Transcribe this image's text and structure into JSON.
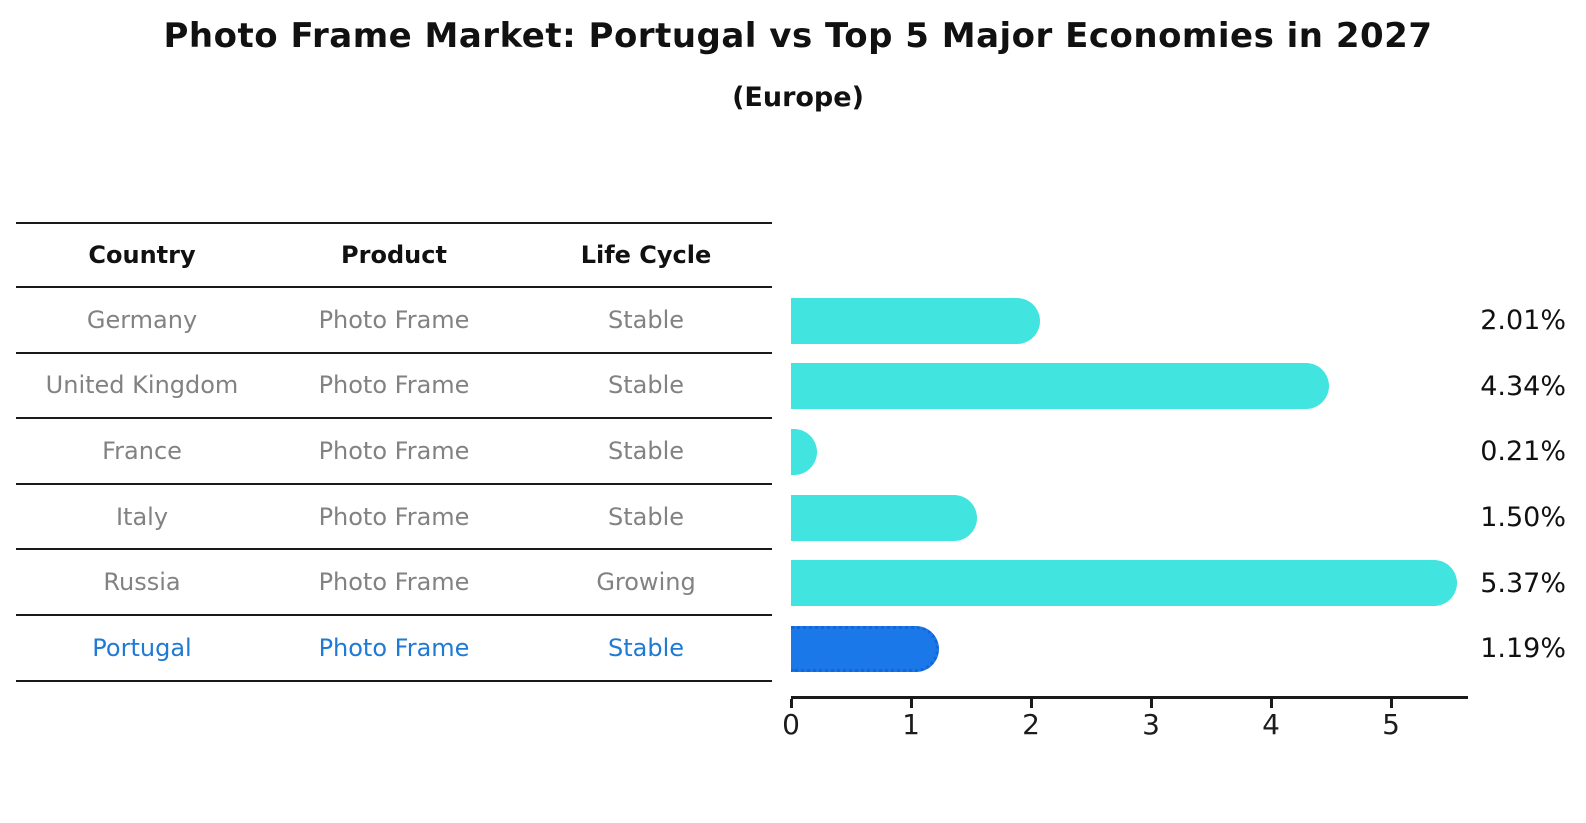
{
  "title": "Photo Frame Market: Portugal vs Top 5 Major Economies in 2027",
  "subtitle": "(Europe)",
  "table": {
    "headers": [
      "Country",
      "Product",
      "Life Cycle"
    ],
    "rows": [
      {
        "country": "Germany",
        "product": "Photo Frame",
        "life_cycle": "Stable",
        "highlight": false
      },
      {
        "country": "United Kingdom",
        "product": "Photo Frame",
        "life_cycle": "Stable",
        "highlight": false
      },
      {
        "country": "France",
        "product": "Photo Frame",
        "life_cycle": "Stable",
        "highlight": false
      },
      {
        "country": "Italy",
        "product": "Photo Frame",
        "life_cycle": "Stable",
        "highlight": false
      },
      {
        "country": "Russia",
        "product": "Photo Frame",
        "life_cycle": "Growing",
        "highlight": false
      },
      {
        "country": "Portugal",
        "product": "Photo Frame",
        "life_cycle": "Stable",
        "highlight": true
      }
    ]
  },
  "chart_data": {
    "type": "bar",
    "orientation": "horizontal",
    "title": "Photo Frame Market: Portugal vs Top 5 Major Economies in 2027 (Europe)",
    "categories": [
      "Germany",
      "United Kingdom",
      "France",
      "Italy",
      "Russia",
      "Portugal"
    ],
    "values": [
      2.01,
      4.34,
      0.21,
      1.5,
      5.37,
      1.19
    ],
    "value_labels": [
      "2.01%",
      "4.34%",
      "0.21%",
      "1.50%",
      "5.37%",
      "1.19%"
    ],
    "unit": "percent",
    "xlim": [
      0,
      5.6
    ],
    "x_ticks": [
      "0",
      "1",
      "2",
      "3",
      "4",
      "5"
    ],
    "grid": false,
    "legend": false,
    "highlight_index": 5,
    "bar_color": "#42e4df",
    "highlight_bar_color": "#1b78e8",
    "highlight_bar_border_color": "#1565d8"
  },
  "colors": {
    "background": "#ffffff",
    "bar": "#42e4df",
    "highlight_bar": "#1b78e8",
    "highlight_text": "#1e7ad4",
    "row_text": "#828282",
    "header_text": "#111111",
    "axis": "#1a1a1a"
  }
}
